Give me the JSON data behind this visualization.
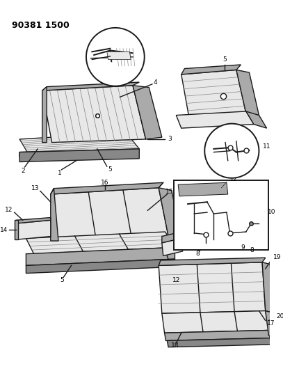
{
  "title": "90381 1500",
  "bg_color": "#ffffff",
  "title_fontsize": 9,
  "title_weight": "bold",
  "fig_width": 4.07,
  "fig_height": 5.33,
  "dpi": 100,
  "lc": "#1a1a1a",
  "lw_main": 1.0,
  "lw_thin": 0.5,
  "lw_thick": 1.4,
  "gray_fill": "#c8c8c8",
  "gray_light": "#e8e8e8",
  "gray_dark": "#888888",
  "gray_mid": "#aaaaaa"
}
